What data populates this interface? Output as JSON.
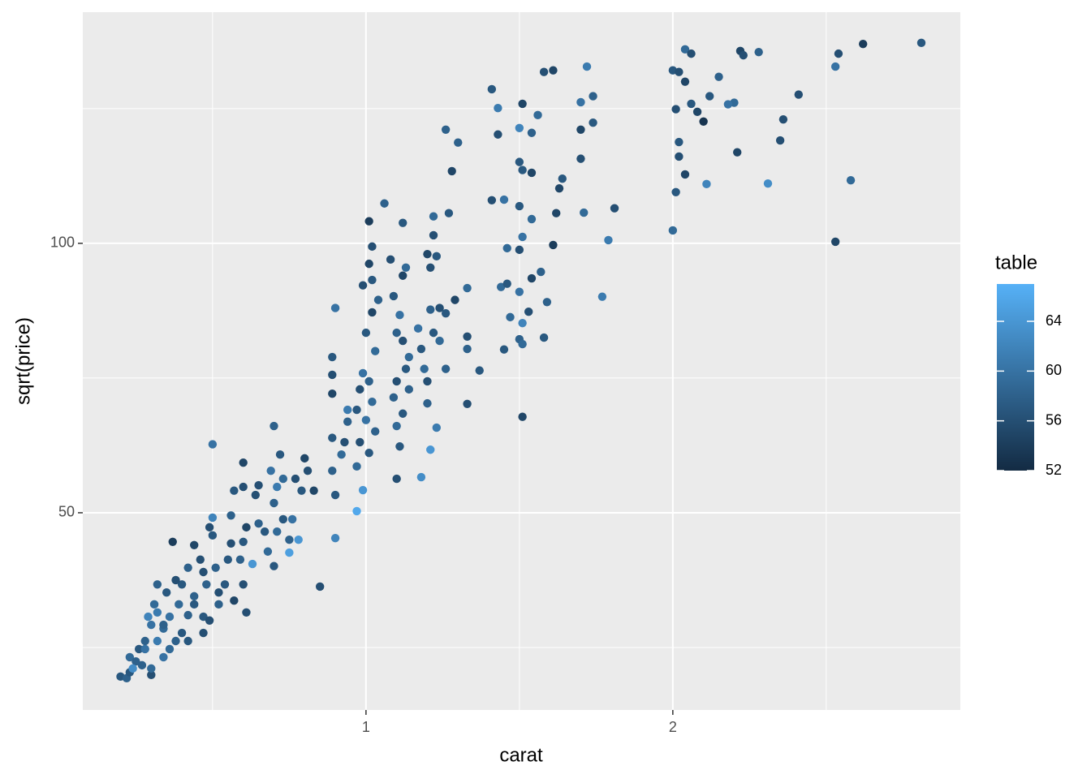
{
  "chart_data": {
    "type": "scatter",
    "x_label": "carat",
    "y_label": "sqrt(price)",
    "color_label": "table",
    "xlim": [
      0.077,
      2.937
    ],
    "ylim": [
      13.4,
      142.9
    ],
    "xticks": [
      1,
      2
    ],
    "yticks": [
      50,
      100
    ],
    "x_minor_ticks": [
      0.5,
      1.5,
      2.5
    ],
    "y_minor_ticks": [
      25,
      75,
      125
    ],
    "grid": true,
    "color_low": "#132B43",
    "color_high": "#56B1F7",
    "color_lim": [
      52,
      67
    ],
    "color_ticks": [
      52,
      56,
      60,
      64
    ],
    "x": [
      2.81,
      2.62,
      2.54,
      2.53,
      2.22,
      2.28,
      2.23,
      2.04,
      2.06,
      2.0,
      2.02,
      2.04,
      2.15,
      2.12,
      2.2,
      2.18,
      2.06,
      2.08,
      2.1,
      2.01,
      2.36,
      2.41,
      2.35,
      2.21,
      2.02,
      2.02,
      2.04,
      2.01,
      2.11,
      2.31,
      2.58,
      2.0,
      2.53,
      1.41,
      1.43,
      1.51,
      1.58,
      1.61,
      1.72,
      1.74,
      1.7,
      1.56,
      1.5,
      1.43,
      1.54,
      1.7,
      1.74,
      1.3,
      1.26,
      1.28,
      1.5,
      1.51,
      1.54,
      1.64,
      1.63,
      1.7,
      1.41,
      1.45,
      1.5,
      1.54,
      1.62,
      1.71,
      1.81,
      1.79,
      1.61,
      1.46,
      1.5,
      1.51,
      1.57,
      1.54,
      1.44,
      1.46,
      1.5,
      1.59,
      1.53,
      1.77,
      1.47,
      1.51,
      1.5,
      1.58,
      1.45,
      1.51,
      1.51,
      1.06,
      1.01,
      1.02,
      1.01,
      1.02,
      0.99,
      1.04,
      1.02,
      1.0,
      1.03,
      0.99,
      1.01,
      0.98,
      1.02,
      0.97,
      1.0,
      1.03,
      0.98,
      1.01,
      0.97,
      0.99,
      0.97,
      0.9,
      0.85,
      0.89,
      0.89,
      0.9,
      0.89,
      0.89,
      0.89,
      0.9,
      0.92,
      0.93,
      0.94,
      0.94,
      1.12,
      1.08,
      1.13,
      1.12,
      1.09,
      1.11,
      1.1,
      1.12,
      1.14,
      1.13,
      1.1,
      1.09,
      1.12,
      1.1,
      1.11,
      1.1,
      1.14,
      1.17,
      1.18,
      1.19,
      1.2,
      1.2,
      1.22,
      1.24,
      1.26,
      1.29,
      1.33,
      1.21,
      1.2,
      1.22,
      1.22,
      1.27,
      1.23,
      1.21,
      1.24,
      1.26,
      1.33,
      1.33,
      1.37,
      1.33,
      1.23,
      1.21,
      1.18,
      0.7,
      0.72,
      0.69,
      0.73,
      0.71,
      0.7,
      0.73,
      0.71,
      0.75,
      0.76,
      0.79,
      0.77,
      0.8,
      0.81,
      0.83,
      0.68,
      0.7,
      0.75,
      0.78,
      0.6,
      0.6,
      0.57,
      0.64,
      0.65,
      0.67,
      0.65,
      0.61,
      0.6,
      0.59,
      0.56,
      0.55,
      0.63,
      0.6,
      0.54,
      0.51,
      0.52,
      0.5,
      0.56,
      0.5,
      0.52,
      0.57,
      0.61,
      0.47,
      0.49,
      0.37,
      0.44,
      0.49,
      0.5,
      0.46,
      0.42,
      0.4,
      0.44,
      0.39,
      0.36,
      0.42,
      0.32,
      0.34,
      0.3,
      0.28,
      0.26,
      0.23,
      0.2,
      0.22,
      0.3,
      0.27,
      0.34,
      0.38,
      0.4,
      0.31,
      0.35,
      0.38,
      0.29,
      0.32,
      0.25,
      0.28,
      0.36,
      0.42,
      0.47,
      0.44,
      0.48,
      0.47,
      0.32,
      0.23,
      0.24,
      0.3,
      0.34
    ],
    "y": [
      137.2,
      137.0,
      135.2,
      132.8,
      135.7,
      135.5,
      134.9,
      136.0,
      135.2,
      132.1,
      131.8,
      130.0,
      130.9,
      127.3,
      126.1,
      125.8,
      125.9,
      124.4,
      122.6,
      124.9,
      123.0,
      127.6,
      119.1,
      116.9,
      118.8,
      116.1,
      112.8,
      109.5,
      111.0,
      111.1,
      111.7,
      102.4,
      100.3,
      128.6,
      125.1,
      125.9,
      131.8,
      132.1,
      132.8,
      127.3,
      126.2,
      123.8,
      121.4,
      120.2,
      120.5,
      121.1,
      122.4,
      118.7,
      121.1,
      113.4,
      115.1,
      113.6,
      113.1,
      112.0,
      110.2,
      115.7,
      108.0,
      108.1,
      106.9,
      104.5,
      105.6,
      105.7,
      106.5,
      100.6,
      99.7,
      99.1,
      98.8,
      101.2,
      94.7,
      93.5,
      91.9,
      92.5,
      91.0,
      89.1,
      87.3,
      90.1,
      86.3,
      85.2,
      82.2,
      82.5,
      80.3,
      81.3,
      67.8,
      107.4,
      104.1,
      99.4,
      96.2,
      93.2,
      92.2,
      89.5,
      87.2,
      83.4,
      80.0,
      75.9,
      74.4,
      72.9,
      70.6,
      69.1,
      67.2,
      65.1,
      63.1,
      61.1,
      58.6,
      54.2,
      50.3,
      45.3,
      36.3,
      78.9,
      75.6,
      88.0,
      72.1,
      63.9,
      57.8,
      53.3,
      60.8,
      63.1,
      66.9,
      69.1,
      103.8,
      97.0,
      95.5,
      94.0,
      90.2,
      86.7,
      83.4,
      81.9,
      78.9,
      76.7,
      74.4,
      71.4,
      68.4,
      66.1,
      62.3,
      56.3,
      72.9,
      84.2,
      80.4,
      76.7,
      74.4,
      70.3,
      83.4,
      88.0,
      87.0,
      89.5,
      91.7,
      95.5,
      98.0,
      101.5,
      105.0,
      105.6,
      97.6,
      87.7,
      81.9,
      76.7,
      82.7,
      80.4,
      76.4,
      70.2,
      65.8,
      61.7,
      56.6,
      66.1,
      60.8,
      57.8,
      56.3,
      54.8,
      51.8,
      48.8,
      46.5,
      45.0,
      48.8,
      54.1,
      56.3,
      60.1,
      57.8,
      54.1,
      42.8,
      40.1,
      42.6,
      45.0,
      59.3,
      54.8,
      54.1,
      53.3,
      48.0,
      46.5,
      55.1,
      47.3,
      44.6,
      41.3,
      44.3,
      41.3,
      40.5,
      36.7,
      36.7,
      39.8,
      35.2,
      62.7,
      49.5,
      45.8,
      33.0,
      33.7,
      31.5,
      30.7,
      30.0,
      44.6,
      44.0,
      47.3,
      49.1,
      41.3,
      39.8,
      36.7,
      34.5,
      33.0,
      30.7,
      31.0,
      31.5,
      28.5,
      29.2,
      26.2,
      24.7,
      23.2,
      19.6,
      19.3,
      19.9,
      21.7,
      23.2,
      26.2,
      27.7,
      33.0,
      35.2,
      37.5,
      30.7,
      26.2,
      22.4,
      24.7,
      24.7,
      26.2,
      27.7,
      33.0,
      36.7,
      39.0,
      36.7,
      20.4,
      21.1,
      21.1,
      29.2
    ],
    "color_values": [
      57,
      54,
      56,
      60,
      55,
      58,
      56,
      59,
      56,
      57,
      56,
      55,
      58,
      57,
      59,
      60,
      57,
      55,
      53,
      56,
      56,
      56,
      56,
      55,
      57,
      56,
      55,
      57,
      62,
      63,
      59,
      59,
      55,
      57,
      61,
      55,
      56,
      55,
      61,
      58,
      60,
      59,
      62,
      56,
      58,
      55,
      57,
      58,
      58,
      55,
      57,
      57,
      55,
      57,
      55,
      56,
      56,
      60,
      57,
      59,
      55,
      59,
      56,
      61,
      54,
      59,
      56,
      60,
      58,
      55,
      59,
      57,
      60,
      58,
      56,
      61,
      59,
      62,
      58,
      57,
      57,
      59,
      55,
      58,
      54,
      56,
      55,
      57,
      56,
      58,
      55,
      57,
      59,
      60,
      58,
      56,
      59,
      57,
      60,
      58,
      56,
      57,
      59,
      64,
      66,
      62,
      56,
      57,
      56,
      60,
      55,
      57,
      58,
      57,
      59,
      56,
      58,
      61,
      57,
      56,
      59,
      55,
      57,
      60,
      58,
      56,
      59,
      57,
      56,
      58,
      57,
      59,
      57,
      56,
      58,
      60,
      57,
      59,
      56,
      58,
      57,
      56,
      57,
      55,
      59,
      56,
      55,
      56,
      59,
      57,
      57,
      58,
      59,
      58,
      56,
      58,
      57,
      56,
      61,
      64,
      63,
      58,
      57,
      60,
      59,
      61,
      58,
      57,
      59,
      58,
      60,
      57,
      56,
      55,
      56,
      55,
      59,
      57,
      65,
      64,
      55,
      56,
      57,
      56,
      58,
      57,
      56,
      55,
      57,
      58,
      56,
      57,
      64,
      56,
      57,
      58,
      56,
      60,
      58,
      57,
      58,
      55,
      56,
      57,
      56,
      54,
      55,
      56,
      62,
      56,
      58,
      57,
      58,
      59,
      60,
      58,
      61,
      59,
      60,
      58,
      57,
      59,
      57,
      58,
      56,
      58,
      60,
      58,
      57,
      59,
      57,
      56,
      62,
      61,
      58,
      60,
      59,
      57,
      56,
      57,
      58,
      56,
      58,
      57,
      63,
      59,
      58
    ]
  }
}
